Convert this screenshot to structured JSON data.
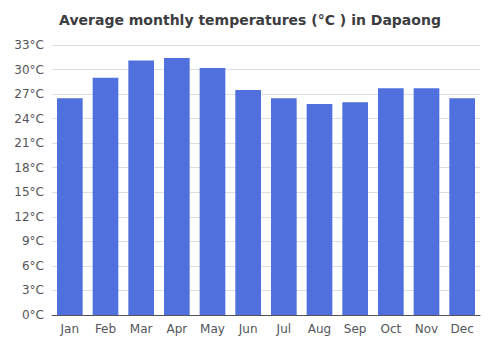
{
  "chart_data": {
    "type": "bar",
    "title": "Average monthly temperatures (°C ) in Dapaong",
    "categories": [
      "Jan",
      "Feb",
      "Mar",
      "Apr",
      "May",
      "Jun",
      "Jul",
      "Aug",
      "Sep",
      "Oct",
      "Nov",
      "Dec"
    ],
    "values": [
      26.5,
      29.0,
      31.1,
      31.4,
      30.2,
      27.5,
      26.5,
      25.8,
      26.0,
      27.7,
      27.7,
      26.5
    ],
    "ylim": [
      0,
      33
    ],
    "yticks": [
      {
        "value": 0,
        "label": "0°C"
      },
      {
        "value": 3,
        "label": "3°C"
      },
      {
        "value": 6,
        "label": "6°C"
      },
      {
        "value": 9,
        "label": "9°C"
      },
      {
        "value": 12,
        "label": "12°C"
      },
      {
        "value": 15,
        "label": "15°C"
      },
      {
        "value": 18,
        "label": "18°C"
      },
      {
        "value": 21,
        "label": "21°C"
      },
      {
        "value": 24,
        "label": "24°C"
      },
      {
        "value": 27,
        "label": "27°C"
      },
      {
        "value": 30,
        "label": "30°C"
      },
      {
        "value": 33,
        "label": "33°C"
      }
    ],
    "grid": true
  }
}
